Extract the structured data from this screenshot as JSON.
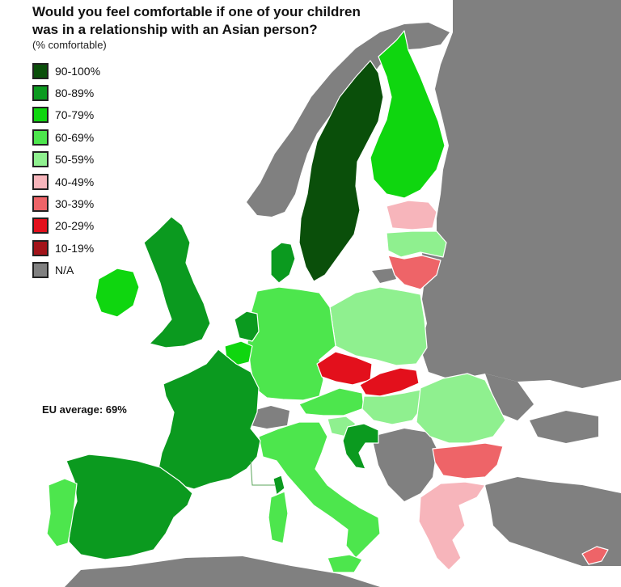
{
  "title": "Would you feel comfortable if one of your children was in a relationship with an Asian person?",
  "subtitle": "(% comfortable)",
  "annotation": "EU average: 69%",
  "legend": [
    {
      "label": "90-100%",
      "color": "#0a4f0a"
    },
    {
      "label": "80-89%",
      "color": "#0b9a1f"
    },
    {
      "label": "70-79%",
      "color": "#0fd60f"
    },
    {
      "label": "60-69%",
      "color": "#4de64d"
    },
    {
      "label": "50-59%",
      "color": "#8ff08f"
    },
    {
      "label": "40-49%",
      "color": "#f7b5bb"
    },
    {
      "label": "30-39%",
      "color": "#ee6468"
    },
    {
      "label": "20-29%",
      "color": "#e3101c"
    },
    {
      "label": "10-19%",
      "color": "#a3141a"
    },
    {
      "label": "N/A",
      "color": "#808080"
    }
  ],
  "countries": [
    {
      "name": "Sweden",
      "bucket": "90-100%"
    },
    {
      "name": "Denmark",
      "bucket": "80-89%"
    },
    {
      "name": "Netherlands",
      "bucket": "80-89%"
    },
    {
      "name": "United Kingdom",
      "bucket": "80-89%"
    },
    {
      "name": "France",
      "bucket": "80-89%"
    },
    {
      "name": "Spain",
      "bucket": "80-89%"
    },
    {
      "name": "Croatia",
      "bucket": "80-89%"
    },
    {
      "name": "Finland",
      "bucket": "70-79%"
    },
    {
      "name": "Ireland",
      "bucket": "70-79%"
    },
    {
      "name": "Belgium",
      "bucket": "70-79%"
    },
    {
      "name": "Germany",
      "bucket": "60-69%"
    },
    {
      "name": "Austria",
      "bucket": "60-69%"
    },
    {
      "name": "Italy",
      "bucket": "60-69%"
    },
    {
      "name": "Portugal",
      "bucket": "60-69%"
    },
    {
      "name": "Poland",
      "bucket": "50-59%"
    },
    {
      "name": "Hungary",
      "bucket": "50-59%"
    },
    {
      "name": "Romania",
      "bucket": "50-59%"
    },
    {
      "name": "Slovenia",
      "bucket": "50-59%"
    },
    {
      "name": "Latvia",
      "bucket": "50-59%"
    },
    {
      "name": "Estonia",
      "bucket": "40-49%"
    },
    {
      "name": "Greece",
      "bucket": "40-49%"
    },
    {
      "name": "Lithuania",
      "bucket": "30-39%"
    },
    {
      "name": "Bulgaria",
      "bucket": "30-39%"
    },
    {
      "name": "Cyprus",
      "bucket": "30-39%"
    },
    {
      "name": "Czech Republic",
      "bucket": "20-29%"
    },
    {
      "name": "Slovakia",
      "bucket": "20-29%"
    }
  ]
}
